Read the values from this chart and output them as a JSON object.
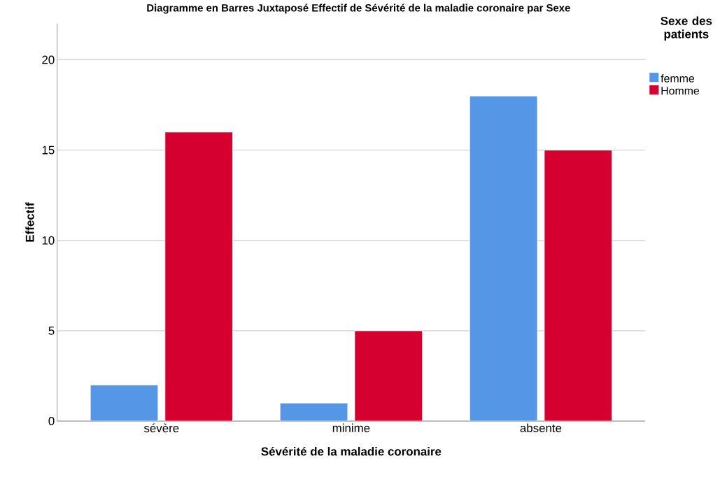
{
  "chart_data": {
    "type": "bar",
    "title": "Diagramme en Barres Juxtaposé Effectif de Sévérité de la maladie coronaire par Sexe",
    "xlabel": "Sévérité de la maladie coronaire",
    "ylabel": "Effectif",
    "legend_title": "Sexe des patients",
    "categories": [
      "sévère",
      "minime",
      "absente"
    ],
    "series": [
      {
        "name": "femme",
        "color": "#5596e6",
        "values": [
          2,
          1,
          18
        ]
      },
      {
        "name": "Homme",
        "color": "#d5002f",
        "values": [
          16,
          5,
          15
        ]
      }
    ],
    "ylim": [
      0,
      22
    ],
    "yticks": [
      0,
      5,
      10,
      15,
      20
    ],
    "grid": "y",
    "legend": "top right"
  }
}
